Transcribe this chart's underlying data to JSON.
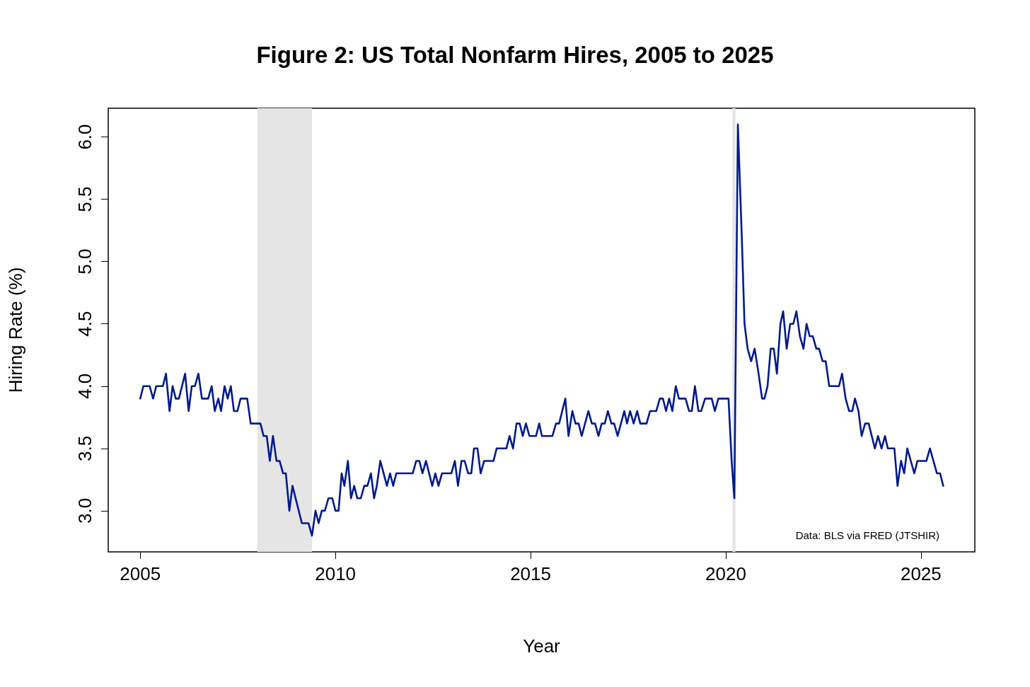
{
  "chart_data": {
    "type": "line",
    "title": "Figure 2: US Total Nonfarm Hires, 2005 to 2025",
    "xlabel": "Year",
    "ylabel": "Hiring Rate (%)",
    "annotations": [
      "Data: BLS via FRED (JTSHIR)"
    ],
    "x": [
      2005.0,
      2005.08,
      2005.24,
      2005.33,
      2005.41,
      2005.58,
      2005.66,
      2005.75,
      2005.83,
      2005.91,
      2005.99,
      2006.15,
      2006.24,
      2006.32,
      2006.4,
      2006.49,
      2006.58,
      2006.74,
      2006.83,
      2006.91,
      2007.0,
      2007.07,
      2007.16,
      2007.24,
      2007.32,
      2007.4,
      2007.49,
      2007.57,
      2007.74,
      2007.83,
      2008.08,
      2008.16,
      2008.24,
      2008.32,
      2008.4,
      2008.49,
      2008.57,
      2008.66,
      2008.73,
      2008.82,
      2008.9,
      2009.14,
      2009.31,
      2009.4,
      2009.49,
      2009.57,
      2009.65,
      2009.73,
      2009.82,
      2009.92,
      2010.0,
      2010.08,
      2010.16,
      2010.23,
      2010.32,
      2010.4,
      2010.48,
      2010.56,
      2010.65,
      2010.74,
      2010.82,
      2010.91,
      2010.99,
      2011.06,
      2011.15,
      2011.32,
      2011.4,
      2011.48,
      2011.56,
      2011.98,
      2012.07,
      2012.15,
      2012.23,
      2012.32,
      2012.48,
      2012.56,
      2012.64,
      2012.73,
      2012.97,
      2013.06,
      2013.14,
      2013.23,
      2013.31,
      2013.4,
      2013.48,
      2013.55,
      2013.64,
      2013.72,
      2013.81,
      2014.05,
      2014.13,
      2014.38,
      2014.46,
      2014.55,
      2014.64,
      2014.72,
      2014.8,
      2014.88,
      2014.97,
      2015.14,
      2015.22,
      2015.29,
      2015.56,
      2015.65,
      2015.73,
      2015.89,
      2015.97,
      2016.07,
      2016.15,
      2016.23,
      2016.31,
      2016.48,
      2016.57,
      2016.65,
      2016.74,
      2016.82,
      2016.9,
      2016.98,
      2017.07,
      2017.14,
      2017.23,
      2017.4,
      2017.47,
      2017.55,
      2017.64,
      2017.73,
      2017.81,
      2017.97,
      2018.06,
      2018.22,
      2018.31,
      2018.39,
      2018.47,
      2018.55,
      2018.63,
      2018.72,
      2018.8,
      2018.97,
      2019.06,
      2019.13,
      2019.21,
      2019.3,
      2019.37,
      2019.47,
      2019.64,
      2019.72,
      2019.81,
      2020.07,
      2020.15,
      2020.22,
      2020.31,
      2020.41,
      2020.48,
      2020.56,
      2020.65,
      2020.74,
      2020.84,
      2020.93,
      2020.99,
      2021.07,
      2021.15,
      2021.23,
      2021.31,
      2021.4,
      2021.47,
      2021.56,
      2021.65,
      2021.73,
      2021.81,
      2021.9,
      2021.99,
      2022.07,
      2022.15,
      2022.23,
      2022.32,
      2022.39,
      2022.48,
      2022.56,
      2022.65,
      2022.9,
      2022.98,
      2023.07,
      2023.16,
      2023.24,
      2023.31,
      2023.4,
      2023.48,
      2023.57,
      2023.66,
      2023.82,
      2023.9,
      2023.99,
      2024.08,
      2024.15,
      2024.32,
      2024.4,
      2024.49,
      2024.57,
      2024.65,
      2024.83,
      2024.91,
      2025.14,
      2025.23,
      2025.41,
      2025.49,
      2025.57
    ],
    "series": [
      {
        "color": "#001a8c",
        "values": [
          3.9,
          4.0,
          4.0,
          3.9,
          4.0,
          4.0,
          4.1,
          3.8,
          4.0,
          3.9,
          3.9,
          4.1,
          3.8,
          4.0,
          4.0,
          4.1,
          3.9,
          3.9,
          4.0,
          3.8,
          3.9,
          3.8,
          4.0,
          3.9,
          4.0,
          3.8,
          3.8,
          3.9,
          3.9,
          3.7,
          3.7,
          3.6,
          3.6,
          3.4,
          3.6,
          3.4,
          3.4,
          3.3,
          3.3,
          3.0,
          3.2,
          2.9,
          2.9,
          2.8,
          3.0,
          2.9,
          3.0,
          3.0,
          3.1,
          3.1,
          3.0,
          3.0,
          3.3,
          3.2,
          3.4,
          3.1,
          3.2,
          3.1,
          3.1,
          3.2,
          3.2,
          3.3,
          3.1,
          3.2,
          3.4,
          3.2,
          3.3,
          3.2,
          3.3,
          3.3,
          3.4,
          3.4,
          3.3,
          3.4,
          3.2,
          3.3,
          3.2,
          3.3,
          3.3,
          3.4,
          3.2,
          3.4,
          3.4,
          3.3,
          3.3,
          3.5,
          3.5,
          3.3,
          3.4,
          3.4,
          3.5,
          3.5,
          3.6,
          3.5,
          3.7,
          3.7,
          3.6,
          3.7,
          3.6,
          3.6,
          3.7,
          3.6,
          3.6,
          3.7,
          3.7,
          3.9,
          3.6,
          3.8,
          3.7,
          3.7,
          3.6,
          3.8,
          3.7,
          3.7,
          3.6,
          3.7,
          3.7,
          3.8,
          3.7,
          3.7,
          3.6,
          3.8,
          3.7,
          3.8,
          3.7,
          3.8,
          3.7,
          3.7,
          3.8,
          3.8,
          3.9,
          3.9,
          3.8,
          3.9,
          3.8,
          4.0,
          3.9,
          3.9,
          3.8,
          3.8,
          4.0,
          3.8,
          3.8,
          3.9,
          3.9,
          3.8,
          3.9,
          3.9,
          3.4,
          3.1,
          6.1,
          5.2,
          4.5,
          4.3,
          4.2,
          4.3,
          4.1,
          3.9,
          3.9,
          4.0,
          4.3,
          4.3,
          4.1,
          4.5,
          4.6,
          4.3,
          4.5,
          4.5,
          4.6,
          4.4,
          4.3,
          4.5,
          4.4,
          4.4,
          4.3,
          4.3,
          4.2,
          4.2,
          4.0,
          4.0,
          4.1,
          3.9,
          3.8,
          3.8,
          3.9,
          3.8,
          3.6,
          3.7,
          3.7,
          3.5,
          3.6,
          3.5,
          3.6,
          3.5,
          3.5,
          3.2,
          3.4,
          3.3,
          3.5,
          3.3,
          3.4,
          3.4,
          3.5,
          3.3,
          3.3,
          3.2
        ]
      }
    ],
    "xlim": [
      2004.18,
      2026.38
    ],
    "xticks": [
      2005,
      2010,
      2015,
      2020,
      2025
    ],
    "ylim": [
      2.67,
      6.23
    ],
    "yticks": [
      {
        "value": 3,
        "label": "3.0"
      },
      3.5,
      {
        "value": 4,
        "label": "4.0"
      },
      4.5,
      {
        "value": 5,
        "label": "5.0"
      },
      5.5,
      {
        "value": 6,
        "label": "6.0"
      }
    ],
    "bands": [
      {
        "axis": "x",
        "from": 2008.0,
        "to": 2009.4,
        "color": "#e5e5e5"
      },
      {
        "axis": "x",
        "from": 2020.17,
        "to": 2020.25,
        "color": "#e5e5e5"
      }
    ],
    "grid": false,
    "line_style": "solid",
    "marker": "none"
  }
}
